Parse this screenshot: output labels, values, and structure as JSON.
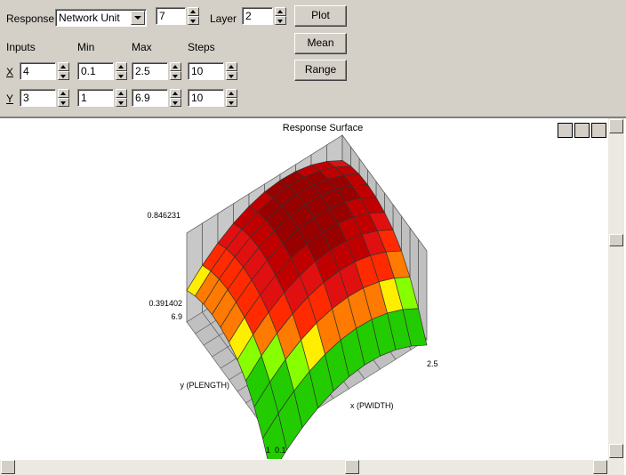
{
  "toolbar": {
    "response_label": "Response",
    "response_value": "Network Unit",
    "unit_index": "7",
    "layer_label": "Layer",
    "layer_value": "2",
    "buttons": [
      "Plot",
      "Mean",
      "Range"
    ],
    "headers": [
      "Inputs",
      "Min",
      "Max",
      "Steps"
    ],
    "rows": [
      {
        "label": "X",
        "input": "4",
        "min": "0.1",
        "max": "2.5",
        "steps": "10"
      },
      {
        "label": "Y",
        "input": "3",
        "min": "1",
        "max": "6.9",
        "steps": "10"
      }
    ]
  },
  "plot": {
    "title": "Response Surface",
    "z_max": "0.846231",
    "z_min": "0.391402",
    "y_max": "6.9",
    "y_min": "1",
    "y_label": "y (PLENGTH)",
    "x_max": "2.5",
    "x_min": "0.1",
    "x_label": "x (PWIDTH)"
  }
}
